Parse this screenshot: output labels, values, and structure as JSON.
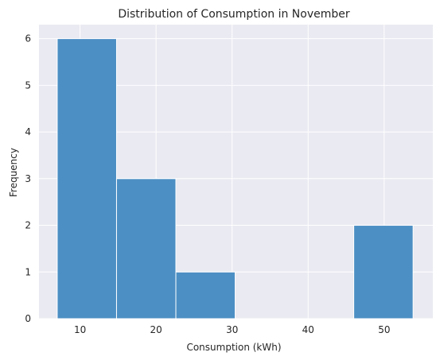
{
  "chart_data": {
    "type": "bar",
    "title": "Distribution of Consumption in November",
    "xlabel": "Consumption (kWh)",
    "ylabel": "Frequency",
    "xlim": [
      4.6,
      56.4
    ],
    "ylim": [
      0,
      6.3
    ],
    "x_ticks": [
      10,
      20,
      30,
      40,
      50
    ],
    "y_ticks": [
      0,
      1,
      2,
      3,
      4,
      5,
      6
    ],
    "bins": [
      {
        "start": 7.0,
        "end": 14.8,
        "value": 6
      },
      {
        "start": 14.8,
        "end": 22.6,
        "value": 3
      },
      {
        "start": 22.6,
        "end": 30.4,
        "value": 1
      },
      {
        "start": 30.4,
        "end": 38.2,
        "value": 0
      },
      {
        "start": 38.2,
        "end": 46.0,
        "value": 0
      },
      {
        "start": 46.0,
        "end": 53.8,
        "value": 2
      }
    ],
    "grid": true,
    "colors": {
      "bar": "#4c8fc4",
      "bar_edge": "#ffffff",
      "plot_background": "#eaeaf2",
      "grid": "#ffffff"
    }
  }
}
